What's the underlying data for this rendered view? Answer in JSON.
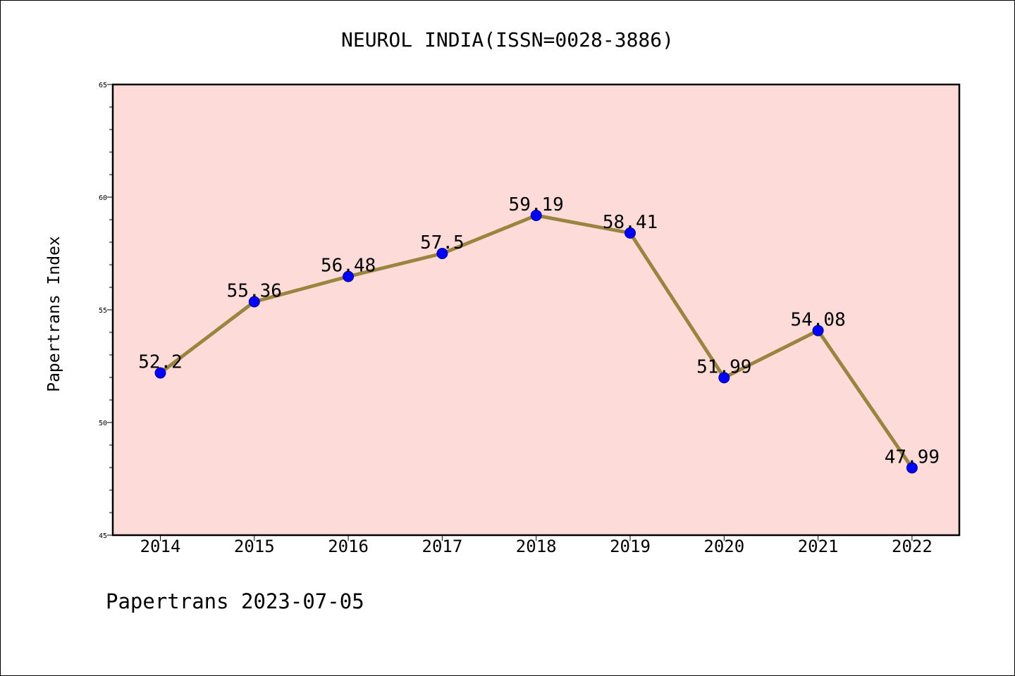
{
  "chart_data": {
    "type": "line",
    "title": "NEUROL INDIA(ISSN=0028-3886)",
    "ylabel": "Papertrans Index",
    "xlabel": "",
    "footer": "Papertrans 2023-07-05",
    "categories": [
      "2014",
      "2015",
      "2016",
      "2017",
      "2018",
      "2019",
      "2020",
      "2021",
      "2022"
    ],
    "values": [
      52.2,
      55.36,
      56.48,
      57.5,
      59.19,
      58.41,
      51.99,
      54.08,
      47.99
    ],
    "data_labels": [
      "52.2",
      "55.36",
      "56.48",
      "57.5",
      "59.19",
      "58.41",
      "51.99",
      "54.08",
      "47.99"
    ],
    "ylim": [
      45,
      65
    ],
    "yticks": [
      "45",
      "50",
      "55",
      "60",
      "65"
    ],
    "grid": false,
    "legend": "none",
    "colors": {
      "plot_background": "#fddbd8",
      "line": "#9a8540",
      "marker": "#0000ff",
      "marker_edge": "#00008b"
    }
  }
}
